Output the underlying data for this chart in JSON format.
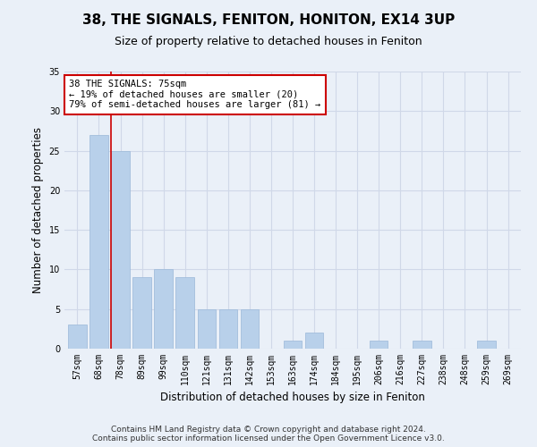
{
  "title": "38, THE SIGNALS, FENITON, HONITON, EX14 3UP",
  "subtitle": "Size of property relative to detached houses in Feniton",
  "xlabel": "Distribution of detached houses by size in Feniton",
  "ylabel": "Number of detached properties",
  "categories": [
    "57sqm",
    "68sqm",
    "78sqm",
    "89sqm",
    "99sqm",
    "110sqm",
    "121sqm",
    "131sqm",
    "142sqm",
    "153sqm",
    "163sqm",
    "174sqm",
    "184sqm",
    "195sqm",
    "206sqm",
    "216sqm",
    "227sqm",
    "238sqm",
    "248sqm",
    "259sqm",
    "269sqm"
  ],
  "values": [
    3,
    27,
    25,
    9,
    10,
    9,
    5,
    5,
    5,
    0,
    1,
    2,
    0,
    0,
    1,
    0,
    1,
    0,
    0,
    1,
    0
  ],
  "bar_color": "#b8d0ea",
  "bar_edge_color": "#9ab8d8",
  "annotation_line1": "38 THE SIGNALS: 75sqm",
  "annotation_line2": "← 19% of detached houses are smaller (20)",
  "annotation_line3": "79% of semi-detached houses are larger (81) →",
  "annotation_box_color": "#ffffff",
  "annotation_box_edge": "#cc0000",
  "red_line_x": 1.57,
  "ylim": [
    0,
    35
  ],
  "yticks": [
    0,
    5,
    10,
    15,
    20,
    25,
    30,
    35
  ],
  "grid_color": "#d0d8e8",
  "background_color": "#eaf0f8",
  "footer_line1": "Contains HM Land Registry data © Crown copyright and database right 2024.",
  "footer_line2": "Contains public sector information licensed under the Open Government Licence v3.0.",
  "title_fontsize": 11,
  "subtitle_fontsize": 9,
  "axis_label_fontsize": 8.5,
  "tick_fontsize": 7,
  "annotation_fontsize": 7.5,
  "footer_fontsize": 6.5
}
